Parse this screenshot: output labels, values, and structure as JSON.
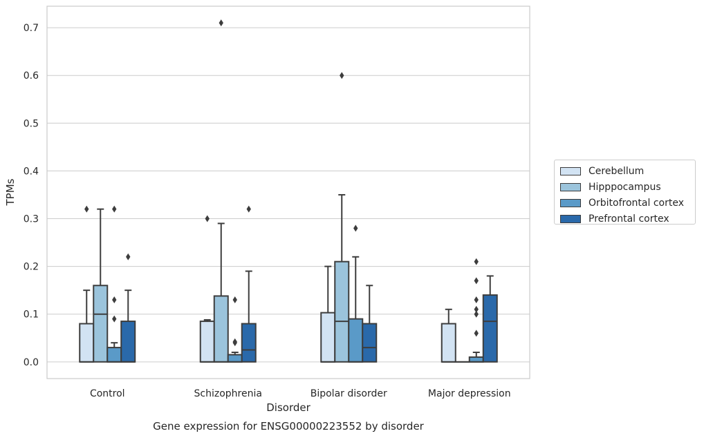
{
  "chart_data": {
    "type": "box",
    "title": "Gene expression for ENSG00000223552 by disorder",
    "xlabel": "Disorder",
    "ylabel": "TPMs",
    "ylim": [
      -0.035,
      0.745
    ],
    "yticks": [
      "0.0",
      "0.1",
      "0.2",
      "0.3",
      "0.4",
      "0.5",
      "0.6",
      "0.7"
    ],
    "grid": true,
    "legend_position": "right",
    "categories": [
      "Control",
      "Schizophrenia",
      "Bipolar disorder",
      "Major depression"
    ],
    "series": [
      {
        "name": "Cerebellum",
        "color": "#d2e3f3",
        "boxes": [
          {
            "min": 0,
            "q1": 0,
            "median": 0,
            "q3": 0.08,
            "max": 0.15,
            "outliers": [
              0.32
            ]
          },
          {
            "min": 0,
            "q1": 0,
            "median": 0,
            "q3": 0.085,
            "max": 0.088,
            "outliers": [
              0.3
            ]
          },
          {
            "min": 0,
            "q1": 0,
            "median": 0,
            "q3": 0.103,
            "max": 0.2,
            "outliers": []
          },
          {
            "min": 0,
            "q1": 0,
            "median": 0,
            "q3": 0.08,
            "max": 0.11,
            "outliers": []
          }
        ]
      },
      {
        "name": "Hipppocampus",
        "color": "#9bc4dc",
        "boxes": [
          {
            "min": 0,
            "q1": 0,
            "median": 0.1,
            "q3": 0.16,
            "max": 0.32,
            "outliers": []
          },
          {
            "min": 0,
            "q1": 0,
            "median": 0,
            "q3": 0.138,
            "max": 0.29,
            "outliers": [
              0.71
            ]
          },
          {
            "min": 0,
            "q1": 0,
            "median": 0.085,
            "q3": 0.21,
            "max": 0.35,
            "outliers": [
              0.6
            ]
          },
          {
            "min": 0,
            "q1": 0,
            "median": 0,
            "q3": 0,
            "max": 0,
            "outliers": []
          }
        ]
      },
      {
        "name": "Orbitofrontal cortex",
        "color": "#5a9ac8",
        "boxes": [
          {
            "min": 0,
            "q1": 0,
            "median": 0,
            "q3": 0.03,
            "max": 0.04,
            "outliers": [
              0.09,
              0.13,
              0.32
            ]
          },
          {
            "min": 0,
            "q1": 0,
            "median": 0,
            "q3": 0.015,
            "max": 0.02,
            "outliers": [
              0.04,
              0.042,
              0.13
            ]
          },
          {
            "min": 0,
            "q1": 0,
            "median": 0,
            "q3": 0.09,
            "max": 0.22,
            "outliers": [
              0.28
            ]
          },
          {
            "min": 0,
            "q1": 0,
            "median": 0,
            "q3": 0.01,
            "max": 0.02,
            "outliers": [
              0.06,
              0.1,
              0.11,
              0.13,
              0.17,
              0.21
            ]
          }
        ]
      },
      {
        "name": "Prefrontal cortex",
        "color": "#2a69aa",
        "boxes": [
          {
            "min": 0,
            "q1": 0,
            "median": 0,
            "q3": 0.085,
            "max": 0.15,
            "outliers": [
              0.22
            ]
          },
          {
            "min": 0,
            "q1": 0,
            "median": 0.025,
            "q3": 0.08,
            "max": 0.19,
            "outliers": [
              0.32
            ]
          },
          {
            "min": 0,
            "q1": 0,
            "median": 0.03,
            "q3": 0.08,
            "max": 0.16,
            "outliers": []
          },
          {
            "min": 0,
            "q1": 0,
            "median": 0.085,
            "q3": 0.14,
            "max": 0.18,
            "outliers": []
          }
        ]
      }
    ]
  }
}
